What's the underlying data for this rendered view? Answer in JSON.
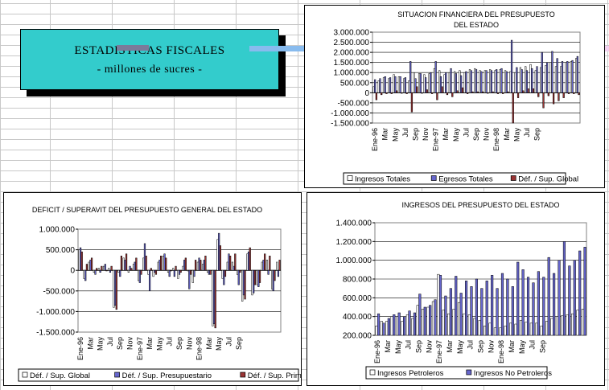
{
  "banner": {
    "line1": "ESTADISTICAS FISCALES",
    "line2": "- millones de sucres -"
  },
  "months": [
    "Ene-96",
    "Mar",
    "May",
    "Jul",
    "Sep",
    "Nov",
    "Ene-97",
    "Mar",
    "May",
    "Jul",
    "Sep",
    "Nov",
    "Ene-98",
    "Mar",
    "May",
    "Jul",
    "Sep"
  ],
  "colors": {
    "accent": "#33cccc",
    "series_white": "#ffffff",
    "series_blue": "#6666cc",
    "series_red": "#993333",
    "series_navy": "#333399"
  },
  "chart_data": [
    {
      "type": "bar",
      "title": "SITUACION FINANCIERA DEL PRESUPUESTO DEL ESTADO",
      "title_lines": [
        "SITUACION FINANCIERA DEL PRESUPUESTO",
        "DEL ESTADO"
      ],
      "ylim": [
        -1500000,
        3000000
      ],
      "yticks": [
        "3.000.000",
        "2.500.000",
        "2.000.000",
        "1.500.000",
        "1.000.000",
        "500.000",
        "0",
        "-500.000",
        "-1.000.000",
        "-1.500.000"
      ],
      "xticks": [
        "Ene-96",
        "Mar",
        "May",
        "Jul",
        "Sep",
        "Nov",
        "Ene-97",
        "Mar",
        "May",
        "Jul",
        "Sep",
        "Nov",
        "Ene-98",
        "Mar",
        "May",
        "Jul",
        "Sep"
      ],
      "legend": "bottom",
      "series": [
        {
          "name": "Ingresos Totales",
          "color": "#ffffff",
          "values": [
            300000,
            600000,
            750000,
            700000,
            900000,
            800000,
            700000,
            600000,
            1000000,
            950000,
            900000,
            950000,
            1200000,
            1100000,
            900000,
            1000000,
            1050000,
            1100000,
            1000000,
            1150000,
            1200000,
            1100000,
            1100000,
            1150000,
            1100000,
            1150000,
            1100000,
            1050000,
            1000000,
            1250000,
            1300000,
            1400000,
            1100000,
            1250000,
            1350000,
            1500000,
            1300000,
            1300000,
            1500000,
            1550000,
            1700000
          ]
        },
        {
          "name": "Egresos Totales",
          "color": "#6666cc",
          "values": [
            650000,
            700000,
            800000,
            750000,
            800000,
            800000,
            750000,
            1550000,
            700000,
            950000,
            750000,
            1000000,
            1550000,
            800000,
            1000000,
            1200000,
            950000,
            850000,
            1050000,
            1100000,
            1150000,
            1050000,
            1100000,
            1100000,
            1150000,
            1200000,
            1050000,
            2600000,
            1250000,
            1150000,
            1100000,
            1200000,
            1300000,
            2000000,
            1500000,
            2050000,
            1700000,
            1550000,
            1550000,
            1600000,
            1800000
          ]
        },
        {
          "name": "Déf. / Sup. Global",
          "color": "#993333",
          "values": [
            -350000,
            -100000,
            -50000,
            -50000,
            100000,
            0,
            -50000,
            -950000,
            300000,
            0,
            150000,
            -50000,
            -350000,
            300000,
            -100000,
            -200000,
            100000,
            250000,
            -50000,
            50000,
            50000,
            50000,
            0,
            50000,
            -50000,
            -50000,
            50000,
            -1550000,
            -250000,
            100000,
            200000,
            200000,
            -200000,
            -750000,
            -150000,
            -550000,
            -400000,
            -250000,
            -50000,
            -50000,
            -100000
          ]
        }
      ]
    },
    {
      "type": "bar",
      "title": "DEFICIT / SUPERAVIT DEL PRESUPUESTO GENERAL DEL ESTADO",
      "ylim": [
        -1500000,
        1000000
      ],
      "yticks": [
        "1.000.000",
        "500.000",
        "0",
        "-500.000",
        "-1.000.000",
        "-1.500.000"
      ],
      "xticks": [
        "Ene-96",
        "Mar",
        "May",
        "Jul",
        "Sep",
        "Nov",
        "Ene-97",
        "Mar",
        "May",
        "Jul",
        "Sep",
        "Nov",
        "Ene-98",
        "Mar",
        "May",
        "Jul",
        "Sep"
      ],
      "legend": "bottom",
      "series": [
        {
          "name": "Déf. / Sup. Global",
          "color": "#ffffff",
          "values": [
            500000,
            -200000,
            200000,
            -50000,
            50000,
            100000,
            50000,
            -900000,
            -50000,
            300000,
            -50000,
            150000,
            -250000,
            300000,
            -100000,
            -150000,
            200000,
            350000,
            -50000,
            50000,
            -200000,
            100000,
            0,
            -300000,
            200000,
            150000,
            -50000,
            -1350000,
            750000,
            -200000,
            200000,
            200000,
            -100000,
            -750000,
            400000,
            -600000,
            -350000,
            200000,
            250000,
            -450000,
            200000
          ]
        },
        {
          "name": "Déf. / Sup. Presupuestario",
          "color": "#6666cc",
          "values": [
            550000,
            -250000,
            250000,
            -100000,
            -50000,
            150000,
            -50000,
            -850000,
            -150000,
            250000,
            100000,
            200000,
            -300000,
            650000,
            -500000,
            -50000,
            250000,
            400000,
            -150000,
            -150000,
            -100000,
            250000,
            -450000,
            -150000,
            300000,
            250000,
            -100000,
            -1300000,
            900000,
            -350000,
            400000,
            100000,
            -350000,
            -600000,
            450000,
            -550000,
            -400000,
            250000,
            -100000,
            -500000,
            -150000
          ]
        },
        {
          "name": "Déf. / Sup. Primario",
          "color": "#993333",
          "values": [
            450000,
            150000,
            300000,
            50000,
            100000,
            0,
            100000,
            -950000,
            350000,
            400000,
            50000,
            300000,
            -100000,
            350000,
            50000,
            -100000,
            350000,
            300000,
            0,
            100000,
            -50000,
            300000,
            -100000,
            250000,
            250000,
            350000,
            -100000,
            -1400000,
            600000,
            -150000,
            350000,
            400000,
            -50000,
            -700000,
            550000,
            -350000,
            -300000,
            400000,
            350000,
            -250000,
            250000
          ]
        }
      ]
    },
    {
      "type": "bar",
      "title": "INGRESOS DEL PRESUPUESTO DEL ESTADO",
      "ylim": [
        200000,
        1400000
      ],
      "yticks": [
        "1.400.000",
        "1.200.000",
        "1.000.000",
        "800.000",
        "600.000",
        "400.000",
        "200.000"
      ],
      "xticks": [
        "Ene-96",
        "Mar",
        "May",
        "Jul",
        "Sep",
        "Nov",
        "Ene-97",
        "Mar",
        "May",
        "Jul",
        "Sep",
        "Nov",
        "Ene-98",
        "Mar",
        "May",
        "Jul",
        "Sep"
      ],
      "legend": "bottom",
      "series": [
        {
          "name": "Ingresos Petroleros",
          "color": "#ffffff",
          "values": [
            300000,
            350000,
            350000,
            400000,
            400000,
            350000,
            420000,
            380000,
            520000,
            480000,
            500000,
            560000,
            850000,
            470000,
            430000,
            480000,
            550000,
            430000,
            420000,
            380000,
            360000,
            300000,
            330000,
            280000,
            280000,
            300000,
            330000,
            320000,
            360000,
            340000,
            330000,
            330000,
            300000,
            350000,
            380000,
            400000,
            410000,
            420000,
            430000,
            470000,
            480000
          ]
        },
        {
          "name": "Ingresos No Petroleros",
          "color": "#6666cc",
          "values": [
            430000,
            330000,
            380000,
            420000,
            440000,
            400000,
            460000,
            440000,
            640000,
            500000,
            520000,
            580000,
            840000,
            620000,
            700000,
            830000,
            650000,
            780000,
            720000,
            800000,
            700000,
            780000,
            840000,
            700000,
            860000,
            800000,
            720000,
            980000,
            900000,
            820000,
            760000,
            880000,
            820000,
            1030000,
            860000,
            1000000,
            1200000,
            940000,
            1000000,
            1100000,
            1140000
          ]
        }
      ]
    }
  ]
}
